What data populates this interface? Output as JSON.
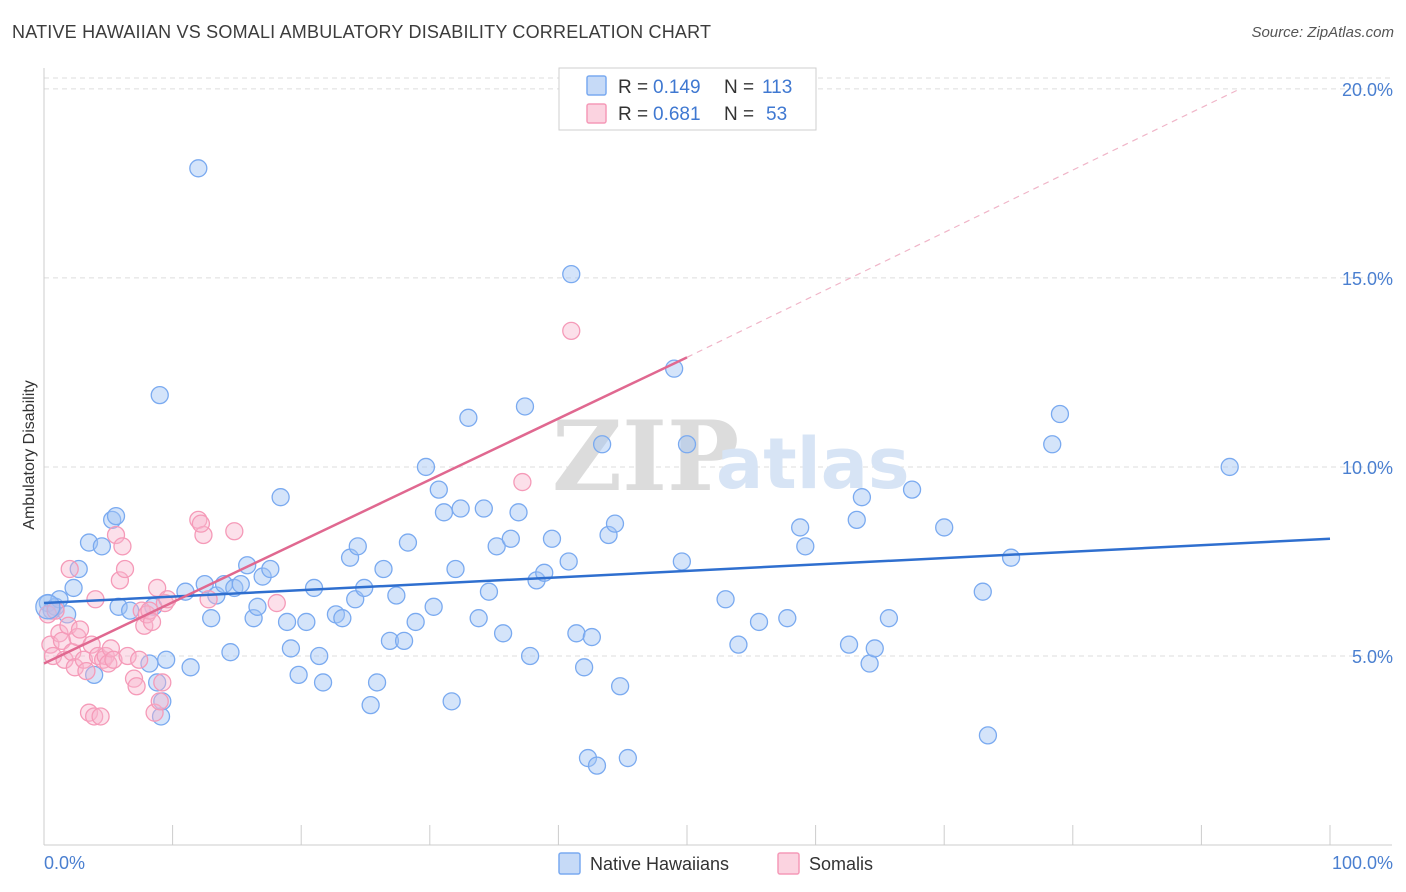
{
  "header": {
    "title": "NATIVE HAWAIIAN VS SOMALI AMBULATORY DISABILITY CORRELATION CHART",
    "source": "Source: ZipAtlas.com"
  },
  "watermark": {
    "zip": "ZIP",
    "atlas": "atlas"
  },
  "legend_box": {
    "rows": [
      {
        "r_label": "R =",
        "r_value": "0.149",
        "n_label": "N =",
        "n_value": "113",
        "color": "#7aaaf0"
      },
      {
        "r_label": "R =",
        "r_value": "0.681",
        "n_label": "N =",
        "n_value": "53",
        "color": "#f59ab8"
      }
    ]
  },
  "chart_data": {
    "type": "scatter",
    "title": "NATIVE HAWAIIAN VS SOMALI AMBULATORY DISABILITY CORRELATION CHART",
    "xlabel": "",
    "ylabel": "Ambulatory Disability",
    "xlim": [
      0,
      100
    ],
    "ylim": [
      0,
      20.5
    ],
    "x_tick_labels": [
      "0.0%",
      "100.0%"
    ],
    "y_ticks": [
      5,
      10,
      15,
      20
    ],
    "y_tick_labels": [
      "5.0%",
      "10.0%",
      "15.0%",
      "20.0%"
    ],
    "grid": true,
    "legend_position": "bottom-center",
    "series": [
      {
        "name": "Native Hawaiians",
        "color": "#7aaaf0",
        "line_color": "#2f6fcf",
        "trend": {
          "x0": 0,
          "y0": 6.4,
          "x1": 100,
          "y1": 8.1
        },
        "points": [
          [
            0.3,
            6.4
          ],
          [
            0.6,
            6.2
          ],
          [
            0.9,
            6.3
          ],
          [
            1.2,
            6.5
          ],
          [
            1.8,
            6.1
          ],
          [
            2.3,
            6.8
          ],
          [
            2.7,
            7.3
          ],
          [
            3.5,
            8.0
          ],
          [
            3.9,
            4.5
          ],
          [
            4.5,
            7.9
          ],
          [
            5.3,
            8.6
          ],
          [
            5.6,
            8.7
          ],
          [
            5.8,
            6.3
          ],
          [
            6.7,
            6.2
          ],
          [
            8.2,
            4.8
          ],
          [
            8.5,
            6.3
          ],
          [
            8.8,
            4.3
          ],
          [
            9.2,
            3.8
          ],
          [
            9.5,
            4.9
          ],
          [
            9.1,
            3.4
          ],
          [
            9.0,
            11.9
          ],
          [
            11.0,
            6.7
          ],
          [
            11.4,
            4.7
          ],
          [
            12.0,
            17.9
          ],
          [
            12.5,
            6.9
          ],
          [
            13.0,
            6.0
          ],
          [
            13.4,
            6.6
          ],
          [
            14.0,
            6.9
          ],
          [
            14.5,
            5.1
          ],
          [
            14.8,
            6.8
          ],
          [
            15.3,
            6.9
          ],
          [
            15.8,
            7.4
          ],
          [
            16.3,
            6.0
          ],
          [
            16.6,
            6.3
          ],
          [
            17.0,
            7.1
          ],
          [
            17.6,
            7.3
          ],
          [
            18.4,
            9.2
          ],
          [
            18.9,
            5.9
          ],
          [
            19.2,
            5.2
          ],
          [
            19.8,
            4.5
          ],
          [
            20.4,
            5.9
          ],
          [
            21.0,
            6.8
          ],
          [
            21.4,
            5.0
          ],
          [
            21.7,
            4.3
          ],
          [
            22.7,
            6.1
          ],
          [
            23.2,
            6.0
          ],
          [
            23.8,
            7.6
          ],
          [
            24.2,
            6.5
          ],
          [
            24.4,
            7.9
          ],
          [
            24.9,
            6.8
          ],
          [
            25.4,
            3.7
          ],
          [
            25.9,
            4.3
          ],
          [
            26.4,
            7.3
          ],
          [
            26.9,
            5.4
          ],
          [
            27.4,
            6.6
          ],
          [
            28.0,
            5.4
          ],
          [
            28.3,
            8.0
          ],
          [
            28.9,
            5.9
          ],
          [
            29.7,
            10.0
          ],
          [
            30.3,
            6.3
          ],
          [
            30.7,
            9.4
          ],
          [
            31.1,
            8.8
          ],
          [
            31.7,
            3.8
          ],
          [
            32.0,
            7.3
          ],
          [
            32.4,
            8.9
          ],
          [
            33.0,
            11.3
          ],
          [
            33.8,
            6.0
          ],
          [
            34.2,
            8.9
          ],
          [
            34.6,
            6.7
          ],
          [
            35.2,
            7.9
          ],
          [
            35.7,
            5.6
          ],
          [
            36.3,
            8.1
          ],
          [
            36.9,
            8.8
          ],
          [
            37.4,
            11.6
          ],
          [
            37.8,
            5.0
          ],
          [
            38.3,
            7.0
          ],
          [
            38.9,
            7.2
          ],
          [
            39.5,
            8.1
          ],
          [
            40.8,
            7.5
          ],
          [
            41.0,
            15.1
          ],
          [
            41.4,
            5.6
          ],
          [
            42.0,
            4.7
          ],
          [
            42.6,
            5.5
          ],
          [
            42.3,
            2.3
          ],
          [
            43.0,
            2.1
          ],
          [
            43.4,
            10.6
          ],
          [
            43.9,
            8.2
          ],
          [
            44.4,
            8.5
          ],
          [
            44.8,
            4.2
          ],
          [
            45.4,
            2.3
          ],
          [
            49.0,
            12.6
          ],
          [
            49.6,
            7.5
          ],
          [
            50.0,
            10.6
          ],
          [
            53.0,
            6.5
          ],
          [
            54.0,
            5.3
          ],
          [
            55.6,
            5.9
          ],
          [
            57.8,
            6.0
          ],
          [
            58.8,
            8.4
          ],
          [
            59.2,
            7.9
          ],
          [
            62.6,
            5.3
          ],
          [
            63.2,
            8.6
          ],
          [
            63.6,
            9.2
          ],
          [
            64.2,
            4.8
          ],
          [
            64.6,
            5.2
          ],
          [
            65.7,
            6.0
          ],
          [
            67.5,
            9.4
          ],
          [
            70.0,
            8.4
          ],
          [
            73.0,
            6.7
          ],
          [
            73.4,
            2.9
          ],
          [
            75.2,
            7.6
          ],
          [
            78.4,
            10.6
          ],
          [
            79.0,
            11.4
          ],
          [
            92.2,
            10.0
          ]
        ]
      },
      {
        "name": "Somalis",
        "color": "#f59ab8",
        "line_color": "#e06890",
        "trend": {
          "x0": 0,
          "y0": 4.8,
          "x1": 50,
          "y1": 12.9
        },
        "trend_extension": {
          "x0": 50,
          "y0": 12.9,
          "x1": 93,
          "y1": 20.0
        },
        "points": [
          [
            0.3,
            6.1
          ],
          [
            0.5,
            5.3
          ],
          [
            0.7,
            5.0
          ],
          [
            0.9,
            6.2
          ],
          [
            1.2,
            5.6
          ],
          [
            1.4,
            5.4
          ],
          [
            1.6,
            4.9
          ],
          [
            1.9,
            5.8
          ],
          [
            2.0,
            7.3
          ],
          [
            2.2,
            5.1
          ],
          [
            2.4,
            4.7
          ],
          [
            2.6,
            5.5
          ],
          [
            2.8,
            5.7
          ],
          [
            3.1,
            4.9
          ],
          [
            3.3,
            4.6
          ],
          [
            3.5,
            3.5
          ],
          [
            3.7,
            5.3
          ],
          [
            3.9,
            3.4
          ],
          [
            4.0,
            6.5
          ],
          [
            4.2,
            5.0
          ],
          [
            4.4,
            3.4
          ],
          [
            4.6,
            4.9
          ],
          [
            4.8,
            5.0
          ],
          [
            5.0,
            4.8
          ],
          [
            5.2,
            5.2
          ],
          [
            5.4,
            4.9
          ],
          [
            5.6,
            8.2
          ],
          [
            5.9,
            7.0
          ],
          [
            6.1,
            7.9
          ],
          [
            6.3,
            7.3
          ],
          [
            6.5,
            5.0
          ],
          [
            7.0,
            4.4
          ],
          [
            7.2,
            4.2
          ],
          [
            7.4,
            4.9
          ],
          [
            7.6,
            6.2
          ],
          [
            7.8,
            5.8
          ],
          [
            8.0,
            6.1
          ],
          [
            8.2,
            6.2
          ],
          [
            8.4,
            5.9
          ],
          [
            8.6,
            3.5
          ],
          [
            8.8,
            6.8
          ],
          [
            9.0,
            3.8
          ],
          [
            9.2,
            4.3
          ],
          [
            9.4,
            6.4
          ],
          [
            9.6,
            6.5
          ],
          [
            12.0,
            8.6
          ],
          [
            12.4,
            8.2
          ],
          [
            12.8,
            6.5
          ],
          [
            14.8,
            8.3
          ],
          [
            18.1,
            6.4
          ],
          [
            41.0,
            13.6
          ],
          [
            37.2,
            9.6
          ],
          [
            12.2,
            8.5
          ]
        ]
      }
    ]
  },
  "bottom_legend": {
    "items": [
      {
        "label": "Native Hawaiians",
        "color": "#7aaaf0"
      },
      {
        "label": "Somalis",
        "color": "#f59ab8"
      }
    ]
  }
}
